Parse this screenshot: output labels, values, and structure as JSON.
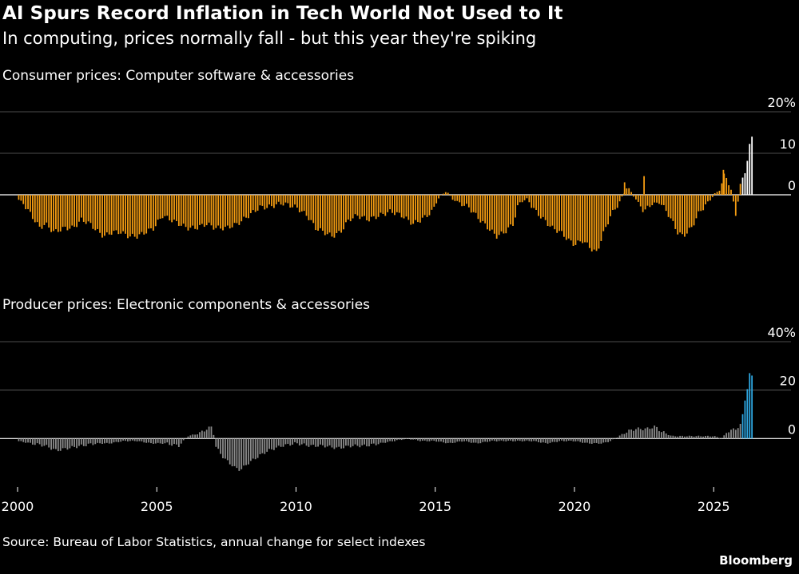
{
  "title": "AI Spurs Record Inflation in Tech World Not Used to It",
  "subtitle": "In computing, prices normally fall - but this year they're spiking",
  "source": "Source: Bureau of Labor Statistics, annual change for select indexes",
  "brand": "Bloomberg",
  "colors": {
    "background": "#000000",
    "consumer_bar": "#f39c12",
    "consumer_highlight": "#ffffff",
    "producer_bar": "#8a8a8a",
    "producer_highlight": "#2ea6e0",
    "gridline": "#666666",
    "text": "#ffffff"
  },
  "chart_data": [
    {
      "type": "bar",
      "title": "Consumer prices: Computer software & accessories",
      "unit": "%",
      "frequency": "monthly",
      "ylim": [
        -15,
        20
      ],
      "y_ticks": [
        "20%",
        "10",
        "0",
        "-10"
      ],
      "x_ticks": [
        "2000",
        "2005",
        "2010",
        "2015",
        "2020",
        "2025"
      ],
      "highlight_from": 2026.0,
      "anchors": [
        [
          2000.0,
          -1
        ],
        [
          2000.2,
          -2
        ],
        [
          2000.4,
          -4
        ],
        [
          2000.6,
          -6
        ],
        [
          2000.8,
          -8
        ],
        [
          2001.0,
          -7
        ],
        [
          2001.3,
          -9
        ],
        [
          2001.7,
          -8
        ],
        [
          2002.0,
          -8
        ],
        [
          2002.3,
          -6
        ],
        [
          2002.6,
          -7
        ],
        [
          2002.9,
          -9
        ],
        [
          2003.1,
          -10
        ],
        [
          2003.4,
          -9
        ],
        [
          2003.7,
          -9
        ],
        [
          2004.0,
          -10
        ],
        [
          2004.3,
          -10
        ],
        [
          2004.6,
          -9
        ],
        [
          2004.9,
          -8
        ],
        [
          2005.2,
          -5
        ],
        [
          2005.5,
          -6
        ],
        [
          2005.8,
          -7
        ],
        [
          2006.1,
          -8
        ],
        [
          2006.4,
          -8
        ],
        [
          2006.8,
          -7
        ],
        [
          2007.1,
          -8
        ],
        [
          2007.5,
          -8
        ],
        [
          2007.9,
          -7
        ],
        [
          2008.3,
          -5
        ],
        [
          2008.7,
          -3
        ],
        [
          2009.0,
          -3
        ],
        [
          2009.5,
          -2
        ],
        [
          2010.0,
          -3
        ],
        [
          2010.4,
          -5
        ],
        [
          2010.7,
          -8
        ],
        [
          2011.0,
          -9
        ],
        [
          2011.3,
          -10
        ],
        [
          2011.6,
          -9
        ],
        [
          2011.9,
          -6
        ],
        [
          2012.2,
          -5
        ],
        [
          2012.6,
          -6
        ],
        [
          2013.0,
          -5
        ],
        [
          2013.4,
          -4
        ],
        [
          2013.8,
          -5
        ],
        [
          2014.2,
          -7
        ],
        [
          2014.5,
          -6
        ],
        [
          2014.9,
          -4
        ],
        [
          2015.1,
          -1
        ],
        [
          2015.4,
          1
        ],
        [
          2015.6,
          -1
        ],
        [
          2015.9,
          -2
        ],
        [
          2016.2,
          -3
        ],
        [
          2016.6,
          -6
        ],
        [
          2016.9,
          -8
        ],
        [
          2017.2,
          -10
        ],
        [
          2017.5,
          -9
        ],
        [
          2017.8,
          -7
        ],
        [
          2018.0,
          -2
        ],
        [
          2018.3,
          -1
        ],
        [
          2018.6,
          -4
        ],
        [
          2018.9,
          -6
        ],
        [
          2019.2,
          -8
        ],
        [
          2019.5,
          -9
        ],
        [
          2019.8,
          -11
        ],
        [
          2020.0,
          -12
        ],
        [
          2020.3,
          -11
        ],
        [
          2020.6,
          -13
        ],
        [
          2020.8,
          -14
        ],
        [
          2021.0,
          -10
        ],
        [
          2021.3,
          -5
        ],
        [
          2021.6,
          -2
        ],
        [
          2021.9,
          2
        ],
        [
          2022.2,
          -1
        ],
        [
          2022.5,
          -4
        ],
        [
          2022.8,
          -2
        ],
        [
          2023.1,
          -2
        ],
        [
          2023.4,
          -5
        ],
        [
          2023.7,
          -9
        ],
        [
          2023.9,
          -10
        ],
        [
          2024.2,
          -8
        ],
        [
          2024.5,
          -4
        ],
        [
          2024.8,
          -2
        ],
        [
          2025.0,
          0
        ],
        [
          2025.2,
          1
        ],
        [
          2025.4,
          5
        ],
        [
          2025.6,
          2
        ],
        [
          2025.8,
          -5
        ],
        [
          2025.95,
          2
        ],
        [
          2026.1,
          5
        ],
        [
          2026.2,
          8
        ],
        [
          2026.3,
          12
        ],
        [
          2026.35,
          14
        ]
      ],
      "spikes": [
        [
          2021.8,
          3
        ],
        [
          2022.5,
          4.5
        ],
        [
          2025.35,
          6
        ]
      ]
    },
    {
      "type": "bar",
      "title": "Producer prices: Electronic components & accessories",
      "unit": "%",
      "frequency": "monthly",
      "ylim": [
        -20,
        40
      ],
      "y_ticks": [
        "40%",
        "20",
        "0",
        "-20"
      ],
      "x_ticks": [
        "2000",
        "2005",
        "2010",
        "2015",
        "2020",
        "2025"
      ],
      "highlight_from": 2026.0,
      "anchors": [
        [
          2000.0,
          -1
        ],
        [
          2000.5,
          -2
        ],
        [
          2001.0,
          -3
        ],
        [
          2001.4,
          -5
        ],
        [
          2001.8,
          -4
        ],
        [
          2002.3,
          -3
        ],
        [
          2002.8,
          -2
        ],
        [
          2003.3,
          -2
        ],
        [
          2003.8,
          -1
        ],
        [
          2004.3,
          -1
        ],
        [
          2004.8,
          -2
        ],
        [
          2005.3,
          -2
        ],
        [
          2005.8,
          -3
        ],
        [
          2006.1,
          1
        ],
        [
          2006.5,
          2
        ],
        [
          2006.8,
          4
        ],
        [
          2007.0,
          5
        ],
        [
          2007.1,
          -3
        ],
        [
          2007.4,
          -8
        ],
        [
          2007.8,
          -12
        ],
        [
          2008.0,
          -13
        ],
        [
          2008.3,
          -10
        ],
        [
          2008.7,
          -7
        ],
        [
          2009.0,
          -5
        ],
        [
          2009.5,
          -3
        ],
        [
          2010.0,
          -2
        ],
        [
          2010.5,
          -3
        ],
        [
          2011.0,
          -3
        ],
        [
          2011.5,
          -4
        ],
        [
          2012.0,
          -3
        ],
        [
          2012.5,
          -3
        ],
        [
          2013.0,
          -2
        ],
        [
          2013.5,
          -1
        ],
        [
          2014.0,
          0
        ],
        [
          2014.5,
          -1
        ],
        [
          2015.0,
          -1
        ],
        [
          2015.5,
          -2
        ],
        [
          2016.0,
          -1
        ],
        [
          2016.5,
          -2
        ],
        [
          2017.0,
          -1
        ],
        [
          2017.5,
          -1
        ],
        [
          2018.0,
          -1
        ],
        [
          2018.5,
          -1
        ],
        [
          2019.0,
          -2
        ],
        [
          2019.5,
          -1
        ],
        [
          2020.0,
          -1
        ],
        [
          2020.5,
          -2
        ],
        [
          2021.0,
          -2
        ],
        [
          2021.3,
          -1
        ],
        [
          2021.6,
          1
        ],
        [
          2021.9,
          3
        ],
        [
          2022.2,
          4
        ],
        [
          2022.6,
          4
        ],
        [
          2022.9,
          5
        ],
        [
          2023.1,
          3
        ],
        [
          2023.5,
          1
        ],
        [
          2024.0,
          1
        ],
        [
          2024.5,
          1
        ],
        [
          2025.0,
          1
        ],
        [
          2025.3,
          0
        ],
        [
          2025.5,
          3
        ],
        [
          2025.8,
          4
        ],
        [
          2026.0,
          6
        ],
        [
          2026.1,
          15
        ],
        [
          2026.2,
          20
        ],
        [
          2026.3,
          27
        ],
        [
          2026.35,
          26
        ]
      ],
      "spikes": []
    }
  ]
}
